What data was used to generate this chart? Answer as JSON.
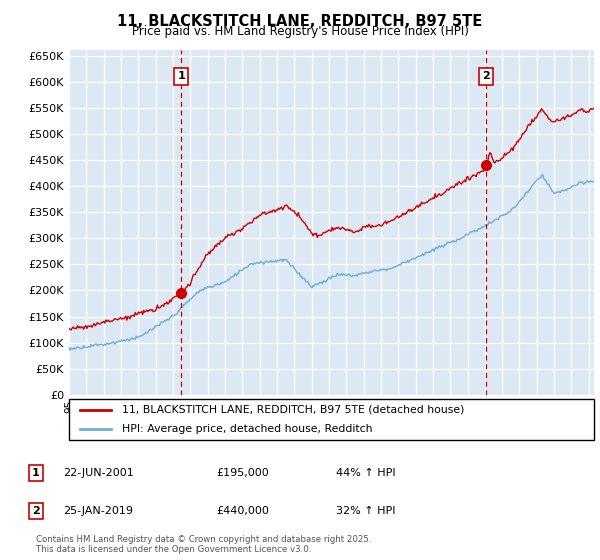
{
  "title": "11, BLACKSTITCH LANE, REDDITCH, B97 5TE",
  "subtitle": "Price paid vs. HM Land Registry's House Price Index (HPI)",
  "ylim": [
    0,
    660000
  ],
  "yticks": [
    0,
    50000,
    100000,
    150000,
    200000,
    250000,
    300000,
    350000,
    400000,
    450000,
    500000,
    550000,
    600000,
    650000
  ],
  "xlim_start": 1995.0,
  "xlim_end": 2025.3,
  "hpi_color": "#6baed6",
  "price_color": "#cc0000",
  "vline_color": "#cc0000",
  "sale1_year": 2001.47,
  "sale1_price": 195000,
  "sale1_label": "1",
  "sale2_year": 2019.07,
  "sale2_price": 440000,
  "sale2_label": "2",
  "legend_line1": "11, BLACKSTITCH LANE, REDDITCH, B97 5TE (detached house)",
  "legend_line2": "HPI: Average price, detached house, Redditch",
  "annotation1_date": "22-JUN-2001",
  "annotation1_price": "£195,000",
  "annotation1_pct": "44% ↑ HPI",
  "annotation2_date": "25-JAN-2019",
  "annotation2_price": "£440,000",
  "annotation2_pct": "32% ↑ HPI",
  "footer": "Contains HM Land Registry data © Crown copyright and database right 2025.\nThis data is licensed under the Open Government Licence v3.0.",
  "bg_color": "#ffffff",
  "plot_bg_color": "#dce9f5"
}
